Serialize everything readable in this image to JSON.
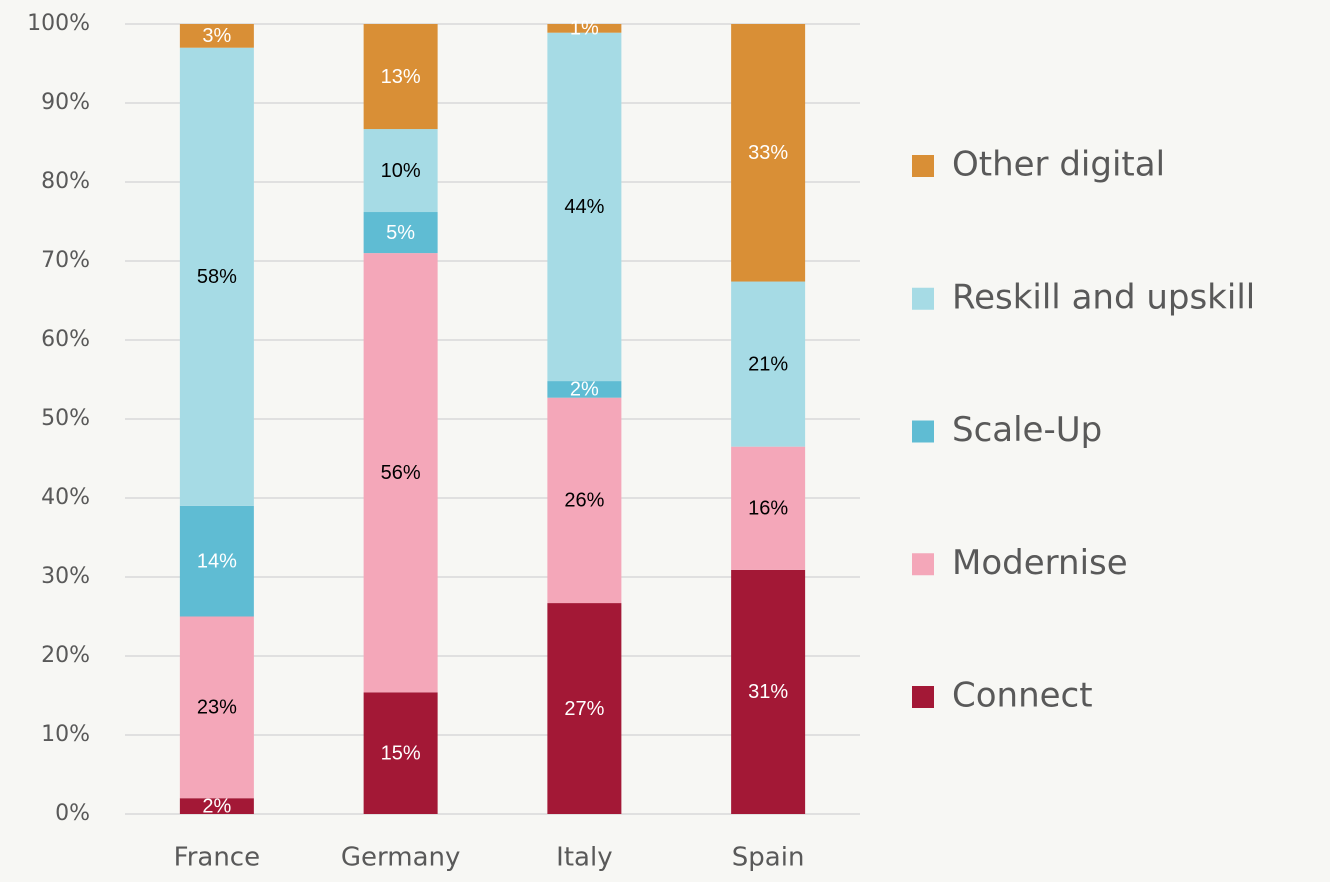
{
  "chart_data": {
    "type": "stacked_bar",
    "categories": [
      "France",
      "Germany",
      "Italy",
      "Spain"
    ],
    "series": [
      {
        "name": "Connect",
        "color": "#a31836",
        "values": [
          2,
          15.4,
          26.7,
          30.9
        ],
        "value_labels": [
          "2%",
          "15%",
          "27%",
          "31%"
        ]
      },
      {
        "name": "Modernise",
        "color": "#f4a7b9",
        "values": [
          23,
          55.6,
          26.0,
          15.6
        ],
        "value_labels": [
          "23%",
          "56%",
          "26%",
          "16%"
        ]
      },
      {
        "name": "Scale-Up",
        "color": "#5fbcd3",
        "values": [
          14,
          5.2,
          2.1,
          0
        ],
        "value_labels": [
          "14%",
          "5%",
          "2%",
          null
        ]
      },
      {
        "name": "Reskill and upskill",
        "color": "#a6dbe5",
        "values": [
          58,
          10.5,
          44.1,
          20.9
        ],
        "value_labels": [
          "58%",
          "10%",
          "44%",
          "21%"
        ]
      },
      {
        "name": "Other digital",
        "color": "#d98f36",
        "values": [
          3,
          13.3,
          1.1,
          32.6
        ],
        "value_labels": [
          "3%",
          "13%",
          "1%",
          "33%"
        ]
      }
    ],
    "ylim": [
      0,
      100
    ],
    "yticks": [
      {
        "value": 0,
        "label": "0%"
      },
      {
        "value": 10,
        "label": "10%"
      },
      {
        "value": 20,
        "label": "20%"
      },
      {
        "value": 30,
        "label": "30%"
      },
      {
        "value": 40,
        "label": "40%"
      },
      {
        "value": 50,
        "label": "50%"
      },
      {
        "value": 60,
        "label": "60%"
      },
      {
        "value": 70,
        "label": "70%"
      },
      {
        "value": 80,
        "label": "80%"
      },
      {
        "value": 90,
        "label": "90%"
      },
      {
        "value": 100,
        "label": "100%"
      }
    ],
    "grid": true,
    "legend": "right"
  }
}
